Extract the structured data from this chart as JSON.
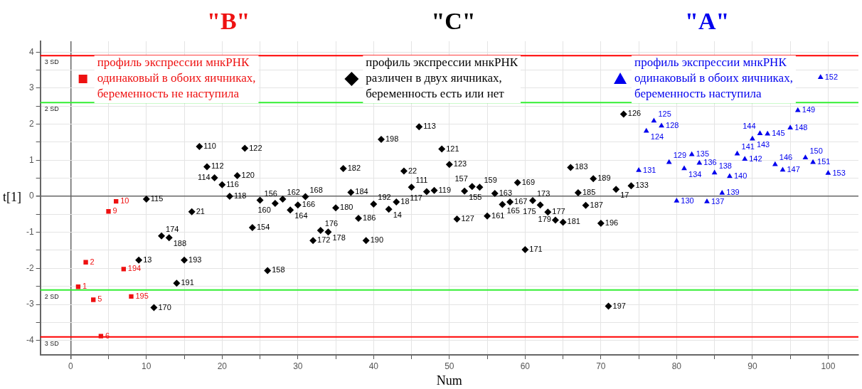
{
  "chart_data": {
    "type": "scatter",
    "xlabel": "Num",
    "ylabel": "t[1]",
    "xlim": [
      -4,
      104
    ],
    "ylim": [
      -4.4,
      4.3
    ],
    "xticks": [
      0,
      {
        "value": 5,
        "label": null
      },
      10,
      {
        "value": 15,
        "label": null
      },
      20,
      {
        "value": 25,
        "label": null
      },
      30,
      {
        "value": 35,
        "label": null
      },
      40,
      {
        "value": 45,
        "label": null
      },
      50,
      {
        "value": 55,
        "label": null
      },
      60,
      {
        "value": 65,
        "label": null
      },
      70,
      {
        "value": 75,
        "label": null
      },
      80,
      {
        "value": 85,
        "label": null
      },
      90,
      {
        "value": 95,
        "label": null
      },
      100
    ],
    "yticks": [
      -4,
      {
        "value": -3.5,
        "label": null
      },
      -3,
      {
        "value": -2.5,
        "label": null
      },
      -2,
      {
        "value": -1.5,
        "label": null
      },
      -1,
      {
        "value": -0.5,
        "label": null
      },
      0,
      {
        "value": 0.5,
        "label": null
      },
      1,
      {
        "value": 1.5,
        "label": null
      },
      2,
      {
        "value": 2.5,
        "label": null
      },
      3,
      {
        "value": 3.5,
        "label": null
      },
      4
    ],
    "grid": true,
    "legend": "top",
    "ref_lines": [
      {
        "axis": "y",
        "value": 3.9,
        "label": "3 SD",
        "color": "#ff0000"
      },
      {
        "axis": "y",
        "value": 2.6,
        "label": "2 SD",
        "color": "#33ee33"
      },
      {
        "axis": "y",
        "value": -2.6,
        "label": "2 SD",
        "color": "#33ee33"
      },
      {
        "axis": "y",
        "value": -3.9,
        "label": "3 SD",
        "color": "#ff0000"
      }
    ],
    "series": [
      {
        "name": "профиль экспрессии мнкРНК одинаковый в обоих яичниках, беременность не наступила",
        "color": "#ee1111",
        "marker": "square",
        "x": [
          1,
          2,
          3,
          4,
          5,
          6,
          7,
          8
        ],
        "values": [
          -2.51,
          -1.83,
          -2.87,
          -3.88,
          -0.42,
          -0.14,
          -2.02,
          -2.78
        ]
      },
      {
        "name": "профиль экспрессии мнкРНК различен в двух яичниках, беременность есть или нет",
        "color": "#000000",
        "marker": "diamond",
        "x": [
          9,
          10,
          11,
          12,
          13,
          14,
          15,
          16,
          17,
          18,
          19,
          20,
          21,
          22,
          23,
          24,
          25,
          26,
          27,
          28,
          29,
          30,
          31,
          32,
          33,
          34,
          35,
          36,
          37,
          38,
          39,
          40,
          41,
          42,
          43,
          44,
          45,
          46,
          47,
          48,
          49,
          50,
          51,
          52,
          53,
          54,
          55,
          56,
          57,
          58,
          59,
          60,
          61,
          62,
          63,
          64,
          65,
          66,
          67,
          68,
          69,
          70,
          71,
          72,
          73,
          74
        ],
        "values": [
          -1.77,
          -0.08,
          -3.09,
          -1.1,
          -1.15,
          -2.41,
          -1.77,
          -0.43,
          1.38,
          0.82,
          0.51,
          0.32,
          0.0,
          0.57,
          1.33,
          -0.87,
          -0.11,
          -2.06,
          -0.2,
          -0.08,
          -0.38,
          -0.24,
          -0.01,
          -1.23,
          -0.95,
          -0.99,
          -0.32,
          0.77,
          0.11,
          -0.61,
          -1.23,
          -0.22,
          1.58,
          -0.36,
          -0.16,
          0.7,
          0.25,
          1.93,
          0.13,
          0.16,
          1.31,
          0.88,
          -0.63,
          0.14,
          0.27,
          0.25,
          -0.55,
          0.08,
          -0.23,
          -0.16,
          0.38,
          -1.48,
          -0.12,
          -0.24,
          -0.44,
          -0.66,
          -0.72,
          0.8,
          0.1,
          -0.25,
          0.49,
          -0.75,
          -3.05,
          0.19,
          2.28,
          0.29
        ]
      },
      {
        "name": "профиль экспрессии мнкРНК одинаковый в обоих яичниках, беременность наступила",
        "color": "#0000ee",
        "marker": "triangle",
        "x": [
          75,
          76,
          77,
          78,
          79,
          80,
          81,
          82,
          83,
          84,
          85,
          86,
          87,
          88,
          89,
          90,
          91,
          92,
          93,
          94,
          95,
          96,
          97,
          98,
          99,
          100
        ],
        "values": [
          0.72,
          1.81,
          2.09,
          1.95,
          0.94,
          -0.13,
          0.77,
          1.16,
          0.92,
          -0.15,
          0.65,
          0.09,
          0.55,
          1.18,
          1.03,
          1.59,
          1.74,
          1.73,
          0.88,
          0.73,
          1.9,
          2.38,
          1.07,
          0.94,
          3.3,
          0.64
        ]
      }
    ],
    "annotations": [
      "\"B\"",
      "\"C\"",
      "\"A\"",
      {
        "text": "1",
        "x": 1,
        "y": -2.51
      },
      {
        "text": "2",
        "x": 2,
        "y": -1.83
      },
      {
        "text": "5",
        "x": 3,
        "y": -2.87
      },
      {
        "text": "6",
        "x": 4,
        "y": -3.88
      },
      {
        "text": "9",
        "x": 5,
        "y": -0.42
      },
      {
        "text": "10",
        "x": 6,
        "y": -0.14
      },
      {
        "text": "194",
        "x": 7,
        "y": -2.02
      },
      {
        "text": "195",
        "x": 8,
        "y": -2.78
      },
      {
        "text": "13",
        "x": 9,
        "y": -1.77
      },
      {
        "text": "115",
        "x": 10,
        "y": -0.08
      },
      {
        "text": "170",
        "x": 11,
        "y": -3.09
      },
      {
        "text": "174",
        "x": 12,
        "y": -1.1
      },
      {
        "text": "188",
        "x": 13,
        "y": -1.15
      },
      {
        "text": "191",
        "x": 14,
        "y": -2.41
      },
      {
        "text": "193",
        "x": 15,
        "y": -1.77
      },
      {
        "text": "21",
        "x": 16,
        "y": -0.43
      },
      {
        "text": "110",
        "x": 17,
        "y": 1.38
      },
      {
        "text": "112",
        "x": 18,
        "y": 0.82
      },
      {
        "text": "114",
        "x": 19,
        "y": 0.51
      },
      {
        "text": "116",
        "x": 20,
        "y": 0.32
      },
      {
        "text": "118",
        "x": 21,
        "y": 0.0
      },
      {
        "text": "120",
        "x": 22,
        "y": 0.57
      },
      {
        "text": "122",
        "x": 23,
        "y": 1.33
      },
      {
        "text": "154",
        "x": 24,
        "y": -0.87
      },
      {
        "text": "156",
        "x": 25,
        "y": -0.11
      },
      {
        "text": "158",
        "x": 26,
        "y": -2.06
      },
      {
        "text": "160",
        "x": 27,
        "y": -0.2
      },
      {
        "text": "162",
        "x": 28,
        "y": -0.08
      },
      {
        "text": "164",
        "x": 29,
        "y": -0.38
      },
      {
        "text": "166",
        "x": 30,
        "y": -0.24
      },
      {
        "text": "168",
        "x": 31,
        "y": -0.01
      },
      {
        "text": "172",
        "x": 32,
        "y": -1.23
      },
      {
        "text": "176",
        "x": 33,
        "y": -0.95
      },
      {
        "text": "178",
        "x": 34,
        "y": -0.99
      },
      {
        "text": "180",
        "x": 35,
        "y": -0.32
      },
      {
        "text": "182",
        "x": 36,
        "y": 0.77
      },
      {
        "text": "184",
        "x": 37,
        "y": 0.11
      },
      {
        "text": "186",
        "x": 38,
        "y": -0.61
      },
      {
        "text": "190",
        "x": 39,
        "y": -1.23
      },
      {
        "text": "192",
        "x": 40,
        "y": -0.22
      },
      {
        "text": "198",
        "x": 41,
        "y": 1.58
      },
      {
        "text": "14",
        "x": 42,
        "y": -0.36
      },
      {
        "text": "18",
        "x": 43,
        "y": -0.16
      },
      {
        "text": "22",
        "x": 44,
        "y": 0.7
      },
      {
        "text": "111",
        "x": 45,
        "y": 0.25
      },
      {
        "text": "113",
        "x": 46,
        "y": 1.93
      },
      {
        "text": "117",
        "x": 47,
        "y": 0.13
      },
      {
        "text": "119",
        "x": 48,
        "y": 0.16
      },
      {
        "text": "121",
        "x": 49,
        "y": 1.31
      },
      {
        "text": "123",
        "x": 50,
        "y": 0.88
      },
      {
        "text": "127",
        "x": 51,
        "y": -0.63
      },
      {
        "text": "155",
        "x": 52,
        "y": 0.14
      },
      {
        "text": "157",
        "x": 53,
        "y": 0.27
      },
      {
        "text": "159",
        "x": 54,
        "y": 0.25
      },
      {
        "text": "161",
        "x": 55,
        "y": -0.55
      },
      {
        "text": "163",
        "x": 56,
        "y": 0.08
      },
      {
        "text": "165",
        "x": 57,
        "y": -0.23
      },
      {
        "text": "167",
        "x": 58,
        "y": -0.16
      },
      {
        "text": "169",
        "x": 59,
        "y": 0.38
      },
      {
        "text": "171",
        "x": 60,
        "y": -1.48
      },
      {
        "text": "173",
        "x": 61,
        "y": -0.12
      },
      {
        "text": "175",
        "x": 62,
        "y": -0.24
      },
      {
        "text": "177",
        "x": 63,
        "y": -0.44
      },
      {
        "text": "179",
        "x": 64,
        "y": -0.66
      },
      {
        "text": "181",
        "x": 65,
        "y": -0.72
      },
      {
        "text": "183",
        "x": 66,
        "y": 0.8
      },
      {
        "text": "185",
        "x": 67,
        "y": 0.1
      },
      {
        "text": "187",
        "x": 68,
        "y": -0.25
      },
      {
        "text": "189",
        "x": 69,
        "y": 0.49
      },
      {
        "text": "196",
        "x": 70,
        "y": -0.75
      },
      {
        "text": "197",
        "x": 71,
        "y": -3.05
      },
      {
        "text": "17",
        "x": 72,
        "y": 0.19
      },
      {
        "text": "126",
        "x": 73,
        "y": 2.28
      },
      {
        "text": "133",
        "x": 74,
        "y": 0.29
      },
      {
        "text": "131",
        "x": 75,
        "y": 0.72
      },
      {
        "text": "124",
        "x": 76,
        "y": 1.81
      },
      {
        "text": "125",
        "x": 77,
        "y": 2.09
      },
      {
        "text": "128",
        "x": 78,
        "y": 1.95
      },
      {
        "text": "129",
        "x": 79,
        "y": 0.94
      },
      {
        "text": "130",
        "x": 80,
        "y": -0.13
      },
      {
        "text": "134",
        "x": 81,
        "y": 0.77
      },
      {
        "text": "135",
        "x": 82,
        "y": 1.16
      },
      {
        "text": "136",
        "x": 83,
        "y": 0.92
      },
      {
        "text": "137",
        "x": 84,
        "y": -0.15
      },
      {
        "text": "138",
        "x": 85,
        "y": 0.65
      },
      {
        "text": "139",
        "x": 86,
        "y": 0.09
      },
      {
        "text": "140",
        "x": 87,
        "y": 0.55
      },
      {
        "text": "141",
        "x": 88,
        "y": 1.18
      },
      {
        "text": "142",
        "x": 89,
        "y": 1.03
      },
      {
        "text": "143",
        "x": 90,
        "y": 1.59
      },
      {
        "text": "144",
        "x": 91,
        "y": 1.74
      },
      {
        "text": "145",
        "x": 92,
        "y": 1.73
      },
      {
        "text": "146",
        "x": 93,
        "y": 0.88
      },
      {
        "text": "147",
        "x": 94,
        "y": 0.73
      },
      {
        "text": "148",
        "x": 95,
        "y": 1.9
      },
      {
        "text": "149",
        "x": 96,
        "y": 2.38
      },
      {
        "text": "150",
        "x": 97,
        "y": 1.07
      },
      {
        "text": "151",
        "x": 98,
        "y": 0.94
      },
      {
        "text": "152",
        "x": 99,
        "y": 3.3
      },
      {
        "text": "153",
        "x": 100,
        "y": 0.64
      }
    ]
  }
}
